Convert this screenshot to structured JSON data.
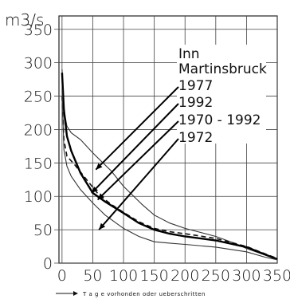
{
  "chart_data": {
    "type": "line",
    "unit": "m3/s",
    "caption": "T a g e   vorhonden oder ueberschritten",
    "xlim": [
      -5,
      350
    ],
    "ylim": [
      0,
      370
    ],
    "x_ticks": [
      0,
      50,
      100,
      150,
      200,
      250,
      300,
      350
    ],
    "y_ticks": [
      0,
      50,
      100,
      150,
      200,
      250,
      300,
      350
    ],
    "grid": true,
    "legend": {
      "placement": "top-right",
      "title_lines": [
        "Inn",
        "Martinsbruck"
      ],
      "entries": [
        "1977",
        "1992",
        "1970 - 1992",
        "1972"
      ]
    },
    "series": [
      {
        "name": "1977",
        "style": "thin",
        "points": [
          [
            0,
            290
          ],
          [
            3,
            230
          ],
          [
            8,
            205
          ],
          [
            15,
            195
          ],
          [
            30,
            185
          ],
          [
            50,
            165
          ],
          [
            80,
            138
          ],
          [
            100,
            115
          ],
          [
            130,
            88
          ],
          [
            150,
            72
          ],
          [
            175,
            60
          ],
          [
            200,
            52
          ],
          [
            250,
            40
          ],
          [
            280,
            30
          ],
          [
            300,
            22
          ],
          [
            330,
            12
          ],
          [
            350,
            6
          ]
        ]
      },
      {
        "name": "1992",
        "style": "dashed",
        "points": [
          [
            0,
            250
          ],
          [
            3,
            185
          ],
          [
            8,
            160
          ],
          [
            20,
            148
          ],
          [
            40,
            125
          ],
          [
            60,
            102
          ],
          [
            80,
            88
          ],
          [
            100,
            76
          ],
          [
            125,
            62
          ],
          [
            150,
            52
          ],
          [
            175,
            47
          ],
          [
            200,
            44
          ],
          [
            250,
            37
          ],
          [
            300,
            25
          ],
          [
            330,
            14
          ],
          [
            350,
            7
          ]
        ]
      },
      {
        "name": "1970 - 1992",
        "style": "thick",
        "points": [
          [
            0,
            285
          ],
          [
            3,
            230
          ],
          [
            8,
            190
          ],
          [
            15,
            168
          ],
          [
            30,
            135
          ],
          [
            50,
            105
          ],
          [
            70,
            92
          ],
          [
            100,
            75
          ],
          [
            125,
            60
          ],
          [
            150,
            50
          ],
          [
            175,
            44
          ],
          [
            200,
            40
          ],
          [
            250,
            34
          ],
          [
            300,
            24
          ],
          [
            330,
            13
          ],
          [
            350,
            6
          ]
        ]
      },
      {
        "name": "1972",
        "style": "thin",
        "points": [
          [
            0,
            260
          ],
          [
            3,
            170
          ],
          [
            8,
            145
          ],
          [
            15,
            130
          ],
          [
            30,
            110
          ],
          [
            50,
            90
          ],
          [
            70,
            72
          ],
          [
            100,
            52
          ],
          [
            125,
            40
          ],
          [
            150,
            32
          ],
          [
            175,
            30
          ],
          [
            200,
            28
          ],
          [
            250,
            24
          ],
          [
            300,
            17
          ],
          [
            330,
            9
          ],
          [
            350,
            5
          ]
        ]
      }
    ],
    "legend_pointers": [
      {
        "series": "1977",
        "tip": [
          55,
          140
        ]
      },
      {
        "series": "1992",
        "tip": [
          48,
          105
        ]
      },
      {
        "series": "1970 - 1992",
        "tip": [
          58,
          95
        ]
      },
      {
        "series": "1972",
        "tip": [
          60,
          50
        ]
      }
    ]
  }
}
